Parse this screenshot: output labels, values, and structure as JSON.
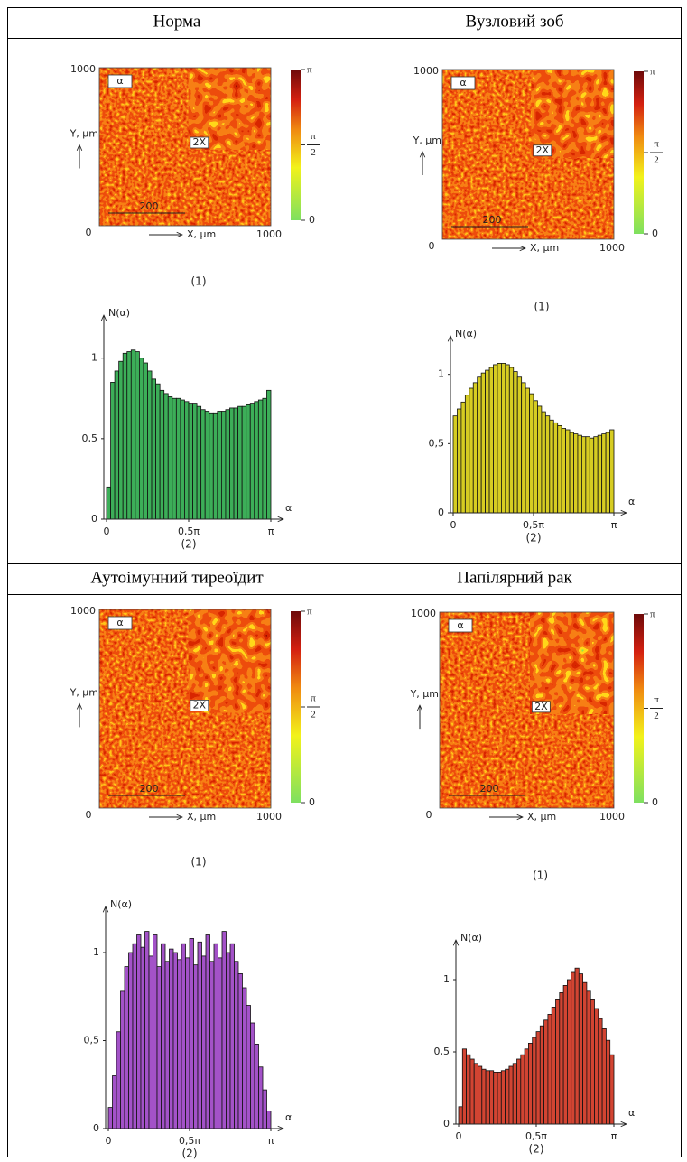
{
  "table": {
    "panels": [
      {
        "header": "Норма",
        "map": {
          "title": "α",
          "inset_label": "2X",
          "scale_label": "200",
          "y_label": "Y, μm",
          "x_label": "X, μm",
          "ytick_top": "1000",
          "origin": "0",
          "xtick_right": "1000",
          "colorbar": {
            "top": "π",
            "mid_num": "π",
            "mid_den": "2",
            "bottom": "0"
          }
        },
        "map_caption": "(1)",
        "chart_data": {
          "type": "histogram",
          "y_label": "N(α)",
          "x_label": "α",
          "color": "#3cae58",
          "bins": [
            0,
            0.025,
            0.05,
            0.075,
            0.1,
            0.125,
            0.15,
            0.175,
            0.2,
            0.225,
            0.25,
            0.275,
            0.3,
            0.325,
            0.35,
            0.375,
            0.4,
            0.425,
            0.45,
            0.475,
            0.5,
            0.525,
            0.55,
            0.575,
            0.6,
            0.625,
            0.65,
            0.675,
            0.7,
            0.725,
            0.75,
            0.775,
            0.8,
            0.825,
            0.85,
            0.875,
            0.9,
            0.925,
            0.95,
            0.975,
            1
          ],
          "values": [
            0.2,
            0.85,
            0.92,
            0.98,
            1.03,
            1.04,
            1.05,
            1.04,
            1.0,
            0.97,
            0.92,
            0.87,
            0.84,
            0.8,
            0.78,
            0.76,
            0.75,
            0.75,
            0.74,
            0.73,
            0.72,
            0.72,
            0.7,
            0.68,
            0.67,
            0.66,
            0.66,
            0.67,
            0.67,
            0.68,
            0.69,
            0.69,
            0.7,
            0.7,
            0.71,
            0.72,
            0.73,
            0.74,
            0.75,
            0.8
          ],
          "xlim": [
            0,
            1
          ],
          "ylim": [
            0,
            1.2
          ],
          "xticks": [
            0,
            {
              "value": 0.5,
              "label": "0,5π"
            },
            {
              "value": 1,
              "label": "π"
            }
          ],
          "yticks": [
            0,
            {
              "value": 0.5,
              "label": "0,5"
            },
            1
          ]
        },
        "chart_caption": "(2)"
      },
      {
        "header": "Вузловий зоб",
        "map": {
          "title": "α",
          "inset_label": "2X",
          "scale_label": "200",
          "y_label": "Y, μm",
          "x_label": "X, μm",
          "ytick_top": "1000",
          "origin": "0",
          "xtick_right": "1000",
          "colorbar": {
            "top": "π",
            "mid_num": "π",
            "mid_den": "2",
            "bottom": "0"
          }
        },
        "map_caption": "(1)",
        "chart_data": {
          "type": "histogram",
          "y_label": "N(α)",
          "x_label": "α",
          "color": "#d6cc22",
          "bins": [
            0,
            0.025,
            0.05,
            0.075,
            0.1,
            0.125,
            0.15,
            0.175,
            0.2,
            0.225,
            0.25,
            0.275,
            0.3,
            0.325,
            0.35,
            0.375,
            0.4,
            0.425,
            0.45,
            0.475,
            0.5,
            0.525,
            0.55,
            0.575,
            0.6,
            0.625,
            0.65,
            0.675,
            0.7,
            0.725,
            0.75,
            0.775,
            0.8,
            0.825,
            0.85,
            0.875,
            0.9,
            0.925,
            0.95,
            0.975,
            1
          ],
          "values": [
            0.7,
            0.75,
            0.8,
            0.85,
            0.9,
            0.94,
            0.98,
            1.01,
            1.03,
            1.05,
            1.07,
            1.08,
            1.08,
            1.07,
            1.05,
            1.02,
            0.98,
            0.94,
            0.9,
            0.86,
            0.81,
            0.77,
            0.73,
            0.7,
            0.67,
            0.65,
            0.63,
            0.61,
            0.6,
            0.58,
            0.57,
            0.56,
            0.55,
            0.55,
            0.54,
            0.55,
            0.56,
            0.57,
            0.58,
            0.6
          ],
          "xlim": [
            0,
            1
          ],
          "ylim": [
            0,
            1.2
          ],
          "xticks": [
            0,
            {
              "value": 0.5,
              "label": "0,5π"
            },
            {
              "value": 1,
              "label": "π"
            }
          ],
          "yticks": [
            0,
            {
              "value": 0.5,
              "label": "0,5"
            },
            1
          ]
        },
        "chart_caption": "(2)"
      },
      {
        "header": "Аутоімунний тиреоїдит",
        "map": {
          "title": "α",
          "inset_label": "2X",
          "scale_label": "200",
          "y_label": "Y, μm",
          "x_label": "X, μm",
          "ytick_top": "1000",
          "origin": "0",
          "xtick_right": "1000",
          "colorbar": {
            "top": "π",
            "mid_num": "π",
            "mid_den": "2",
            "bottom": "0"
          }
        },
        "map_caption": "(1)",
        "chart_data": {
          "type": "histogram",
          "y_label": "N(α)",
          "x_label": "α",
          "color": "#a352c8",
          "bins": [
            0,
            0.025,
            0.05,
            0.075,
            0.1,
            0.125,
            0.15,
            0.175,
            0.2,
            0.225,
            0.25,
            0.275,
            0.3,
            0.325,
            0.35,
            0.375,
            0.4,
            0.425,
            0.45,
            0.475,
            0.5,
            0.525,
            0.55,
            0.575,
            0.6,
            0.625,
            0.65,
            0.675,
            0.7,
            0.725,
            0.75,
            0.775,
            0.8,
            0.825,
            0.85,
            0.875,
            0.9,
            0.925,
            0.95,
            0.975,
            1
          ],
          "values": [
            0.12,
            0.3,
            0.55,
            0.78,
            0.92,
            1.0,
            1.05,
            1.1,
            1.03,
            1.12,
            0.98,
            1.1,
            0.92,
            1.05,
            0.95,
            1.02,
            1.0,
            0.96,
            1.05,
            0.97,
            1.08,
            0.93,
            1.06,
            0.98,
            1.1,
            0.95,
            1.05,
            0.97,
            1.12,
            1.0,
            1.05,
            0.95,
            0.88,
            0.8,
            0.7,
            0.6,
            0.48,
            0.35,
            0.22,
            0.1
          ],
          "xlim": [
            0,
            1
          ],
          "ylim": [
            0,
            1.2
          ],
          "xticks": [
            0,
            {
              "value": 0.5,
              "label": "0,5π"
            },
            {
              "value": 1,
              "label": "π"
            }
          ],
          "yticks": [
            0,
            {
              "value": 0.5,
              "label": "0,5"
            },
            1
          ]
        },
        "chart_caption": "(2)"
      },
      {
        "header": "Папілярний рак",
        "map": {
          "title": "α",
          "inset_label": "2X",
          "scale_label": "200",
          "y_label": "Y, μm",
          "x_label": "X, μm",
          "ytick_top": "1000",
          "origin": "0",
          "xtick_right": "1000",
          "colorbar": {
            "top": "π",
            "mid_num": "π",
            "mid_den": "2",
            "bottom": "0"
          }
        },
        "map_caption": "(1)",
        "chart_data": {
          "type": "histogram",
          "y_label": "N(α)",
          "x_label": "α",
          "color": "#d24432",
          "bins": [
            0,
            0.025,
            0.05,
            0.075,
            0.1,
            0.125,
            0.15,
            0.175,
            0.2,
            0.225,
            0.25,
            0.275,
            0.3,
            0.325,
            0.35,
            0.375,
            0.4,
            0.425,
            0.45,
            0.475,
            0.5,
            0.525,
            0.55,
            0.575,
            0.6,
            0.625,
            0.65,
            0.675,
            0.7,
            0.725,
            0.75,
            0.775,
            0.8,
            0.825,
            0.85,
            0.875,
            0.9,
            0.925,
            0.95,
            0.975,
            1
          ],
          "values": [
            0.12,
            0.52,
            0.48,
            0.45,
            0.42,
            0.4,
            0.38,
            0.37,
            0.37,
            0.36,
            0.36,
            0.37,
            0.38,
            0.4,
            0.42,
            0.45,
            0.48,
            0.52,
            0.56,
            0.6,
            0.64,
            0.68,
            0.72,
            0.76,
            0.81,
            0.86,
            0.91,
            0.96,
            1.0,
            1.05,
            1.08,
            1.04,
            0.98,
            0.92,
            0.86,
            0.8,
            0.73,
            0.66,
            0.58,
            0.48
          ],
          "xlim": [
            0,
            1
          ],
          "ylim": [
            0,
            1.2
          ],
          "xticks": [
            0,
            {
              "value": 0.5,
              "label": "0,5π"
            },
            {
              "value": 1,
              "label": "π"
            }
          ],
          "yticks": [
            0,
            {
              "value": 0.5,
              "label": "0,5"
            },
            1
          ]
        },
        "chart_caption": "(2)"
      }
    ]
  }
}
